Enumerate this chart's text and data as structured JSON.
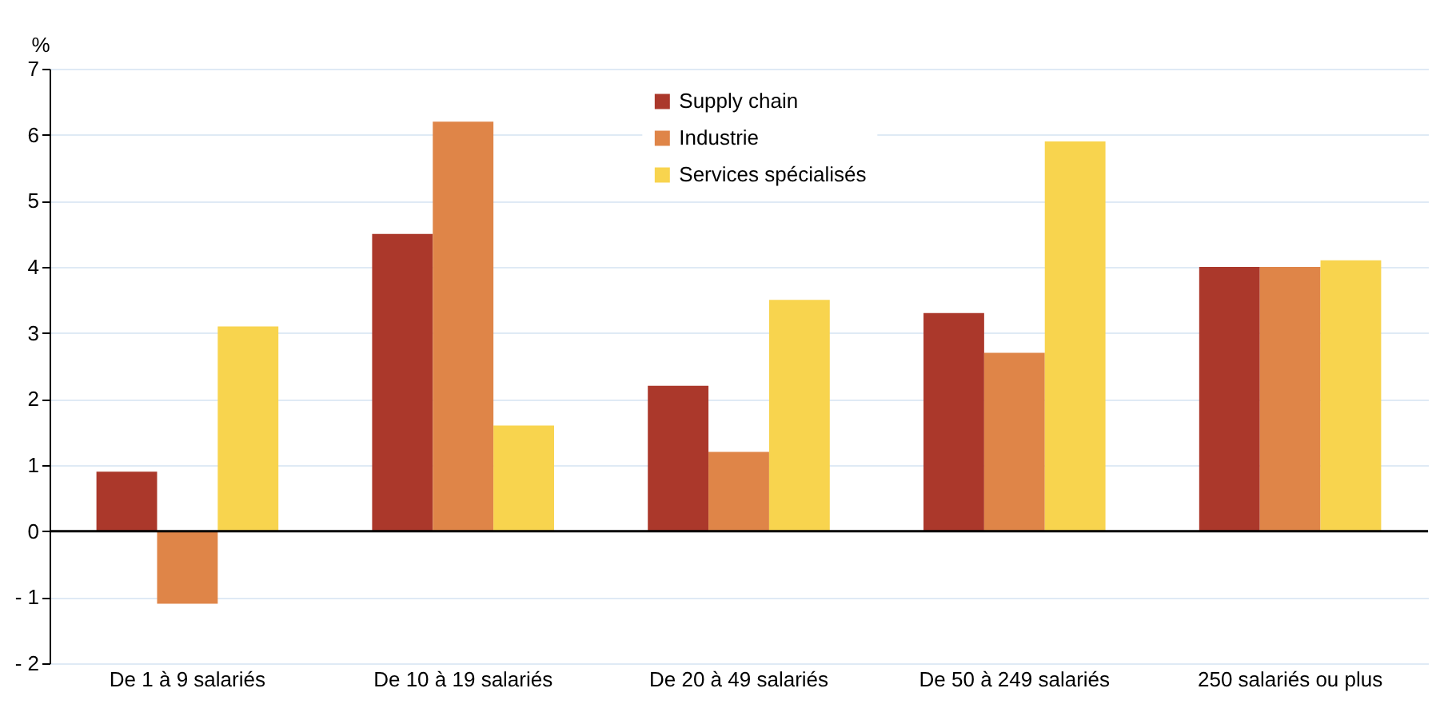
{
  "chart_data": {
    "type": "bar",
    "ylabel": "%",
    "categories": [
      "De 1 à 9 salariés",
      "De 10 à 19 salariés",
      "De 20 à 49 salariés",
      "De 50 à 249 salariés",
      "250 salariés ou plus"
    ],
    "series": [
      {
        "name": "Supply chain",
        "color": "#ab382b",
        "values": [
          0.9,
          4.5,
          2.2,
          3.3,
          4.0
        ]
      },
      {
        "name": "Industrie",
        "color": "#df8548",
        "values": [
          -1.1,
          6.2,
          1.2,
          2.7,
          4.0
        ]
      },
      {
        "name": "Services spécialisés",
        "color": "#f8d44e",
        "values": [
          3.1,
          1.6,
          3.5,
          5.9,
          4.1
        ]
      }
    ],
    "ylim": [
      -2,
      7
    ],
    "yticks": [
      {
        "value": -2,
        "label": "- 2"
      },
      {
        "value": -1,
        "label": "- 1"
      },
      0,
      1,
      2,
      3,
      4,
      5,
      6,
      7
    ],
    "ref_lines": [
      {
        "axis": "y",
        "value": 0,
        "color": "#000000"
      }
    ],
    "grid": "y",
    "legend": "top"
  }
}
